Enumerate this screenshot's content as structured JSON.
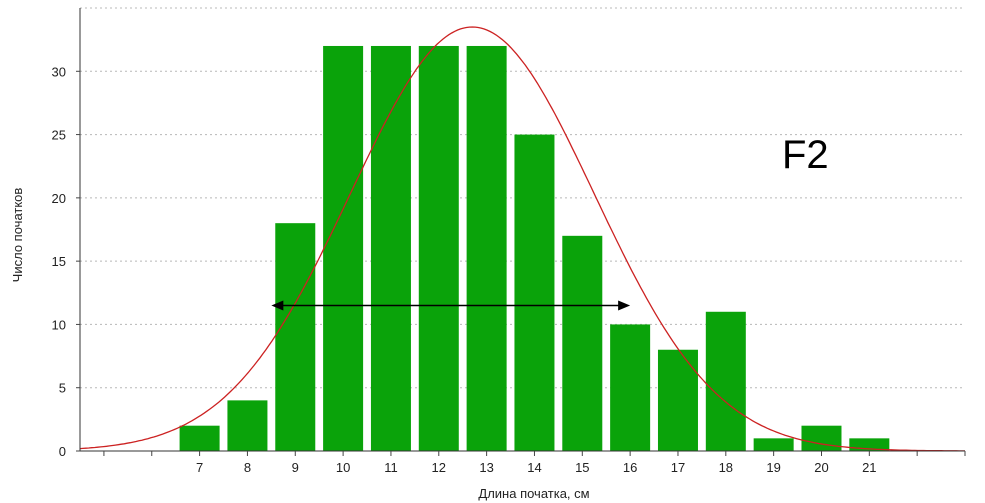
{
  "chart_data": {
    "type": "bar",
    "categories": [
      "7",
      "8",
      "9",
      "10",
      "11",
      "12",
      "13",
      "14",
      "15",
      "16",
      "17",
      "18",
      "19",
      "20",
      "21"
    ],
    "values": [
      2,
      4,
      18,
      32,
      32,
      32,
      32,
      25,
      17,
      10,
      8,
      11,
      1,
      2,
      1
    ],
    "xlabel": "Длина початка, см",
    "ylabel": "Число початков",
    "ylim": [
      0,
      35
    ],
    "xlim": [
      4.5,
      23
    ],
    "yticks": [
      0,
      5,
      10,
      15,
      20,
      25,
      30
    ],
    "grid": true,
    "annotation": "F2",
    "normal_curve": {
      "mean": 12.7,
      "sd": 2.55,
      "peak": 33.5
    },
    "arrow_range": {
      "from": 8.5,
      "to": 16,
      "y": 11.5
    },
    "colors": {
      "bars": "#0aa30a",
      "curve": "#cc2222",
      "grid": "#b8b8b8",
      "arrow": "#000000"
    }
  }
}
